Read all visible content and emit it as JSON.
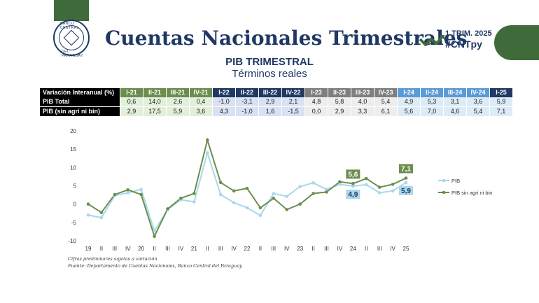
{
  "header": {
    "title": "Cuentas Nacionales Trimestrales",
    "badge_period": "1 TRIM. 2025",
    "badge_hashtag": "#CNTpy",
    "logo_top_text": "BANCO CENTRAL",
    "logo_bottom_text": "DEL PARAGUAY",
    "subtitle": "PIB TRIMESTRAL",
    "subtitle2": "Términos reales"
  },
  "colors": {
    "navy": "#1f3864",
    "green": "#3f6b3a",
    "series_pib": "#a8d8ea",
    "series_sin": "#6b8e4e"
  },
  "table": {
    "header_label": "Variación Interanual (%)",
    "columns": [
      "I-21",
      "II-21",
      "III-21",
      "IV-21",
      "I-22",
      "II-22",
      "III-22",
      "IV-22",
      "I-23",
      "II-23",
      "III-23",
      "IV-23",
      "I-24",
      "II-24",
      "III-24",
      "IV-24",
      "I-25"
    ],
    "rows": [
      {
        "label": "PIB Total",
        "values": [
          "0,6",
          "14,0",
          "2,6",
          "0,4",
          "-1,0",
          "-3,1",
          "2,9",
          "2,1",
          "4,8",
          "5,8",
          "4,0",
          "5,4",
          "4,9",
          "5,3",
          "3,1",
          "3,6",
          "5,9"
        ]
      },
      {
        "label": "PIB (sin agri ni bin)",
        "values": [
          "2,9",
          "17,5",
          "5,9",
          "3,6",
          "4,3",
          "-1,0",
          "1,6",
          "-1,5",
          "0,0",
          "2,9",
          "3,3",
          "6,1",
          "5,6",
          "7,0",
          "4,6",
          "5,4",
          "7,1"
        ]
      }
    ]
  },
  "chart_data": {
    "type": "line",
    "x": [
      "19",
      "II",
      "III",
      "IV",
      "20",
      "II",
      "III",
      "IV",
      "21",
      "II",
      "III",
      "IV",
      "22",
      "II",
      "III",
      "IV",
      "23",
      "II",
      "III",
      "IV",
      "24",
      "II",
      "III",
      "IV",
      "25"
    ],
    "ylim": [
      -10,
      20
    ],
    "yticks": [
      -10,
      -5,
      0,
      5,
      10,
      15,
      20
    ],
    "series": [
      {
        "name": "PIB",
        "values": [
          -3.0,
          -3.7,
          2.3,
          3.1,
          4.0,
          -7.3,
          -1.5,
          1.2,
          0.6,
          14.0,
          2.6,
          0.4,
          -1.0,
          -3.1,
          2.9,
          2.1,
          4.8,
          5.8,
          4.0,
          5.4,
          4.9,
          5.3,
          3.1,
          3.6,
          5.9
        ]
      },
      {
        "name": "PIB sin agri ni bin",
        "values": [
          0.0,
          -2.3,
          2.6,
          3.9,
          2.6,
          -8.8,
          -1.3,
          1.6,
          2.9,
          17.5,
          5.9,
          3.6,
          4.3,
          -1.0,
          1.6,
          -1.5,
          0.0,
          2.9,
          3.3,
          6.1,
          5.6,
          7.0,
          4.6,
          5.4,
          7.1
        ]
      }
    ],
    "labels": [
      {
        "series": "PIB sin agri ni bin",
        "index": 20,
        "text": "5,6"
      },
      {
        "series": "PIB",
        "index": 20,
        "text": "4,9"
      },
      {
        "series": "PIB sin agri ni bin",
        "index": 24,
        "text": "7,1"
      },
      {
        "series": "PIB",
        "index": 24,
        "text": "5,9"
      }
    ],
    "legend_position": "right"
  },
  "footer": {
    "note1": "Cifras preliminares sujetas a variación",
    "note2": "Fuente: Departamento de Cuentas Nacionales, Banco Central del Paraguay"
  }
}
